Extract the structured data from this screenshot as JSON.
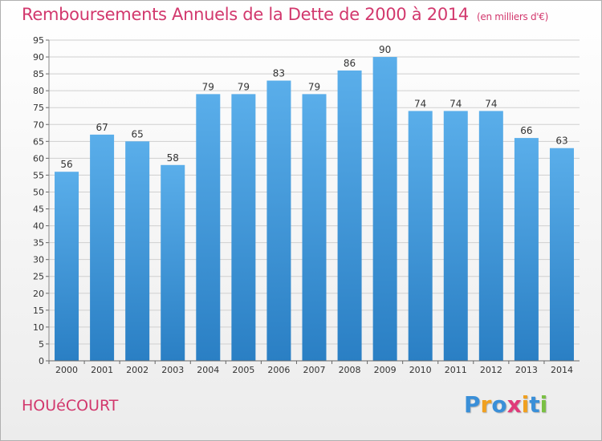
{
  "chart_data": {
    "type": "bar",
    "title": "Remboursements Annuels de la Dette de 2000 à 2014",
    "subtitle": "(en milliers d'€)",
    "categories": [
      "2000",
      "2001",
      "2002",
      "2003",
      "2004",
      "2005",
      "2006",
      "2007",
      "2008",
      "2009",
      "2010",
      "2011",
      "2012",
      "2013",
      "2014"
    ],
    "values": [
      56,
      67,
      65,
      58,
      79,
      79,
      83,
      79,
      86,
      90,
      74,
      74,
      74,
      66,
      63
    ],
    "ylim": [
      0,
      95
    ],
    "yticks": [
      0,
      5,
      10,
      15,
      20,
      25,
      30,
      35,
      40,
      45,
      50,
      55,
      60,
      65,
      70,
      75,
      80,
      85,
      90,
      95
    ],
    "grid": true,
    "xlabel": "",
    "ylabel": "",
    "colors": {
      "bar_top": "#5aaeea",
      "bar_bottom": "#2a7fc4",
      "title": "#d2386d",
      "grid": "#cfcfcf"
    }
  },
  "footer": {
    "commune": "HOUéCOURT"
  },
  "logo": {
    "letters": [
      {
        "ch": "P",
        "color": "#3a8fd8"
      },
      {
        "ch": "r",
        "color": "#f0a020"
      },
      {
        "ch": "o",
        "color": "#3a8fd8"
      },
      {
        "ch": "x",
        "color": "#e03a7a"
      },
      {
        "ch": "i",
        "color": "#f0a020"
      },
      {
        "ch": "t",
        "color": "#3a8fd8"
      },
      {
        "ch": "i",
        "color": "#7ac043"
      }
    ]
  }
}
